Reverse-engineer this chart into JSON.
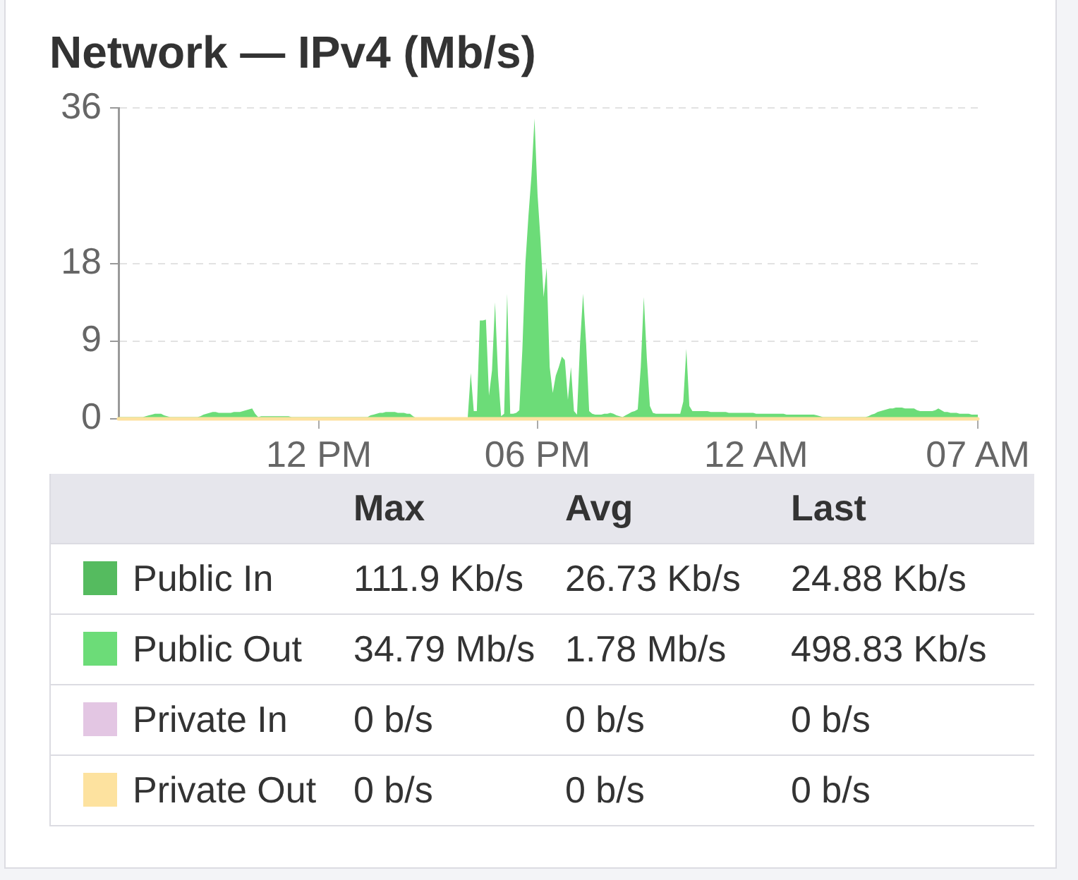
{
  "chart_data": {
    "type": "area",
    "title": "Network — IPv4 (Mb/s)",
    "categories": [
      null,
      null,
      null,
      null,
      null,
      null,
      null,
      null,
      null,
      null,
      null,
      null,
      null,
      null,
      null,
      null,
      null,
      null,
      null,
      null,
      null,
      null,
      null,
      null,
      null,
      null,
      null,
      null,
      null,
      null,
      null,
      null,
      null,
      null,
      null,
      null,
      null,
      null,
      null,
      null,
      null,
      null,
      null,
      null,
      null,
      null,
      null,
      null,
      null,
      null,
      null,
      null,
      null,
      null,
      null,
      null,
      null,
      null,
      null,
      null,
      null,
      null,
      null,
      null,
      null,
      null,
      "12 PM",
      null,
      null,
      null,
      null,
      null,
      null,
      null,
      null,
      null,
      null,
      null,
      null,
      null,
      null,
      null,
      null,
      null,
      null,
      null,
      null,
      null,
      null,
      null,
      null,
      null,
      null,
      null,
      null,
      null,
      null,
      null,
      null,
      null,
      null,
      null,
      null,
      null,
      null,
      null,
      null,
      null,
      null,
      null,
      null,
      null,
      null,
      null,
      null,
      null,
      null,
      null,
      null,
      null,
      null,
      null,
      null,
      null,
      null,
      null,
      null,
      null,
      null,
      null,
      null,
      null,
      null,
      null,
      null,
      null,
      null,
      null,
      "06 PM",
      null,
      null,
      null,
      null,
      null,
      null,
      null,
      null,
      null,
      null,
      null,
      null,
      null,
      null,
      null,
      null,
      null,
      null,
      null,
      null,
      null,
      null,
      null,
      null,
      null,
      null,
      null,
      null,
      null,
      null,
      null,
      null,
      null,
      null,
      null,
      null,
      null,
      null,
      null,
      null,
      null,
      null,
      null,
      null,
      null,
      null,
      null,
      null,
      null,
      null,
      null,
      null,
      null,
      null,
      null,
      null,
      null,
      null,
      null,
      null,
      null,
      null,
      null,
      null,
      null,
      null,
      null,
      null,
      null,
      null,
      null,
      "12 AM",
      null,
      null,
      null,
      null,
      null,
      null,
      null,
      null,
      null,
      null,
      null,
      null,
      null,
      null,
      null,
      null,
      null,
      null,
      null,
      null,
      null,
      null,
      null,
      null,
      null,
      null,
      null,
      null,
      null,
      null,
      null,
      null,
      null,
      null,
      null,
      null,
      null,
      null,
      null,
      null,
      null,
      null,
      null,
      null,
      null,
      null,
      null,
      null,
      null,
      null,
      null,
      null,
      null,
      null,
      null,
      null,
      null,
      null,
      null,
      null,
      null,
      null,
      null,
      null,
      null,
      null,
      null,
      null,
      null,
      null,
      null,
      null,
      "07 AM"
    ],
    "ylim": [
      0,
      36
    ],
    "yticks": [
      0,
      9,
      18,
      36
    ],
    "grid": "y",
    "legend": "bottom",
    "series": [
      {
        "name": "Public In",
        "color": "#55bb5f",
        "values": [
          null,
          null,
          null,
          null,
          null,
          null,
          null,
          null,
          null,
          null,
          null,
          null,
          null,
          null,
          null,
          null,
          null,
          null,
          null,
          null,
          null,
          null,
          null,
          null,
          null,
          null,
          null,
          null,
          null,
          null,
          null,
          null,
          null,
          null,
          null,
          null,
          null,
          null,
          null,
          null,
          null,
          null,
          null,
          null,
          null,
          null,
          null,
          null,
          null,
          null,
          null,
          null,
          null,
          null,
          null,
          null,
          null,
          null,
          null,
          null,
          null,
          null,
          null,
          null,
          null,
          null,
          null,
          null,
          null,
          null,
          null,
          null,
          null,
          null,
          null,
          null,
          null,
          null,
          null,
          null,
          null,
          null,
          null,
          null,
          null,
          null,
          null,
          null,
          null,
          null,
          null,
          null,
          null,
          null,
          null,
          null,
          null,
          null,
          null,
          null,
          null,
          null,
          null,
          null,
          null,
          null,
          null,
          null,
          null,
          null,
          null,
          null,
          null,
          null,
          null,
          null,
          null,
          null,
          null,
          null,
          null,
          null,
          null,
          null,
          null,
          null,
          null,
          null,
          null,
          null,
          null,
          null,
          null,
          null,
          null,
          null,
          null,
          null,
          null,
          null,
          null,
          null,
          null,
          null,
          null,
          null,
          null,
          null,
          null,
          null,
          null,
          null,
          null,
          null,
          null,
          null,
          null,
          null,
          null,
          null,
          null,
          null,
          null,
          null,
          null,
          null,
          null,
          null,
          null,
          null,
          null,
          null,
          null,
          null,
          null,
          null,
          null,
          null,
          null,
          null,
          null,
          null,
          null,
          null,
          null,
          null,
          null,
          null,
          null,
          null,
          null,
          null,
          null,
          null,
          null,
          null,
          null,
          null,
          null,
          null,
          null,
          null,
          null,
          null,
          null,
          null,
          null,
          null,
          null,
          null,
          null,
          null,
          null,
          null,
          null,
          null,
          null,
          null,
          null,
          null,
          null,
          null,
          null,
          null,
          null,
          null,
          null,
          null,
          null,
          null,
          null,
          null,
          null,
          null,
          null,
          null,
          null,
          null,
          null,
          null,
          null,
          null,
          null,
          null,
          null,
          null,
          null,
          null,
          null,
          null,
          null,
          null,
          null,
          null,
          null,
          null,
          null,
          null,
          null,
          null,
          null,
          null,
          null,
          null,
          null,
          null,
          null,
          null,
          null,
          null,
          null,
          null,
          null,
          null,
          null,
          null,
          null,
          null,
          null,
          null,
          null,
          null,
          null,
          null
        ]
      },
      {
        "name": "Public Out",
        "color": "#6cdc78",
        "values": [
          0.2,
          0.2,
          0.2,
          0.2,
          0.2,
          0.2,
          0.2,
          0.2,
          0.2,
          0.3,
          0.4,
          0.5,
          0.6,
          0.6,
          0.6,
          0.4,
          0.3,
          0.2,
          0.2,
          0.2,
          0.2,
          0.2,
          0.2,
          0.2,
          0.2,
          0.2,
          0.2,
          0.3,
          0.5,
          0.6,
          0.7,
          0.8,
          0.8,
          0.7,
          0.7,
          0.7,
          0.7,
          0.7,
          0.8,
          0.8,
          0.8,
          0.9,
          1.0,
          1.1,
          1.2,
          0.6,
          0.2,
          0.3,
          0.3,
          0.3,
          0.3,
          0.3,
          0.3,
          0.3,
          0.3,
          0.3,
          0.3,
          0.2,
          0.2,
          0.2,
          0.2,
          0.2,
          0.2,
          0.2,
          0.2,
          0.2,
          0.2,
          0.2,
          0.2,
          0.2,
          0.2,
          0.2,
          0.2,
          0.2,
          0.2,
          0.2,
          0.2,
          0.2,
          0.2,
          0.2,
          0.2,
          0.2,
          0.2,
          0.4,
          0.5,
          0.6,
          0.7,
          0.7,
          0.8,
          0.8,
          0.8,
          0.8,
          0.7,
          0.7,
          0.7,
          0.6,
          0.6,
          0.3,
          0.1,
          0.1,
          0.1,
          0.1,
          0.1,
          0.1,
          0.1,
          0.1,
          0.1,
          0.1,
          0.1,
          0.1,
          0.1,
          0.1,
          0.1,
          0.1,
          0.1,
          0.1,
          5.3,
          0.9,
          0.9,
          11.4,
          11.4,
          11.5,
          2.7,
          5.6,
          13.5,
          5.0,
          0.3,
          0.6,
          14.5,
          0.6,
          0.6,
          0.7,
          1.0,
          8.0,
          18.0,
          23.5,
          28.2,
          34.8,
          26.0,
          20.6,
          14.1,
          17.5,
          6.0,
          3.0,
          5.0,
          6.0,
          7.2,
          6.8,
          2.2,
          6.0,
          0.9,
          0.5,
          8.7,
          14.5,
          8.7,
          0.9,
          0.6,
          0.5,
          0.5,
          0.5,
          0.6,
          0.6,
          0.7,
          0.6,
          0.4,
          0.3,
          0.2,
          0.4,
          0.6,
          0.8,
          0.9,
          1.1,
          6.0,
          14.1,
          7.0,
          1.5,
          0.7,
          0.6,
          0.6,
          0.6,
          0.6,
          0.6,
          0.6,
          0.6,
          0.6,
          0.6,
          2.0,
          8.1,
          1.5,
          0.9,
          0.9,
          0.9,
          0.9,
          0.9,
          0.9,
          0.8,
          0.8,
          0.8,
          0.8,
          0.8,
          0.8,
          0.7,
          0.7,
          0.7,
          0.7,
          0.7,
          0.7,
          0.7,
          0.7,
          0.7,
          0.6,
          0.6,
          0.6,
          0.6,
          0.6,
          0.6,
          0.6,
          0.6,
          0.6,
          0.6,
          0.5,
          0.5,
          0.5,
          0.5,
          0.5,
          0.5,
          0.5,
          0.5,
          0.5,
          0.5,
          0.4,
          0.3,
          0.2,
          0.2,
          0.2,
          0.2,
          0.2,
          0.2,
          0.2,
          0.2,
          0.2,
          0.2,
          0.2,
          0.2,
          0.2,
          0.2,
          0.2,
          0.3,
          0.5,
          0.6,
          0.8,
          0.9,
          1.0,
          1.1,
          1.2,
          1.2,
          1.3,
          1.3,
          1.3,
          1.2,
          1.2,
          1.2,
          1.2,
          1.0,
          0.9,
          0.9,
          0.9,
          0.9,
          0.9,
          1.0,
          1.2,
          1.0,
          0.8,
          0.8,
          0.7,
          0.7,
          0.7,
          0.6,
          0.6,
          0.6,
          0.6,
          0.5,
          0.5,
          0.5
        ]
      },
      {
        "name": "Private In",
        "color": "#e3c6e3",
        "values": [
          null,
          null,
          null,
          null,
          null,
          null,
          null,
          null,
          null,
          null,
          null,
          null,
          null,
          null,
          null,
          null,
          null,
          null,
          null,
          null,
          null,
          null,
          null,
          null,
          null,
          null,
          null,
          null,
          null,
          null,
          null,
          null,
          null,
          null,
          null,
          null,
          null,
          null,
          null,
          null,
          null,
          null,
          null,
          null,
          null,
          null,
          null,
          null,
          null,
          null,
          null,
          null,
          null,
          null,
          null,
          null,
          null,
          null,
          null,
          null,
          null,
          null,
          null,
          null,
          null,
          null,
          null,
          null,
          null,
          null,
          null,
          null,
          null,
          null,
          null,
          null,
          null,
          null,
          null,
          null,
          null,
          null,
          null,
          null,
          null,
          null,
          null,
          null,
          null,
          null,
          null,
          null,
          null,
          null,
          null,
          null,
          null,
          null,
          null,
          null,
          null,
          null,
          null,
          null,
          null,
          null,
          null,
          null,
          null,
          null,
          null,
          null,
          null,
          null,
          null,
          null,
          null,
          null,
          null,
          null,
          null,
          null,
          null,
          null,
          null,
          null,
          null,
          null,
          null,
          null,
          null,
          null,
          null,
          null,
          null,
          null,
          null,
          null,
          null,
          null,
          null,
          null,
          null,
          null,
          null,
          null,
          null,
          null,
          null,
          null,
          null,
          null,
          null,
          null,
          null,
          null,
          null,
          null,
          null,
          null,
          null,
          null,
          null,
          null,
          null,
          null,
          null,
          null,
          null,
          null,
          null,
          null,
          null,
          null,
          null,
          null,
          null,
          null,
          null,
          null,
          null,
          null,
          null,
          null,
          null,
          null,
          null,
          null,
          null,
          null,
          null,
          null,
          null,
          null,
          null,
          null,
          null,
          null,
          null,
          null,
          null,
          null,
          null,
          null,
          null,
          null,
          null,
          null,
          null,
          null,
          null,
          null,
          null,
          null,
          null,
          null,
          null,
          null,
          null,
          null,
          null,
          null,
          null,
          null,
          null,
          null,
          null,
          null,
          null,
          null,
          null,
          null,
          null,
          null,
          null,
          null,
          null,
          null,
          null,
          null,
          null,
          null,
          null,
          null,
          null,
          null,
          null,
          null,
          null,
          null,
          null,
          null,
          null,
          null,
          null,
          null,
          null,
          null,
          null,
          null,
          null,
          null,
          null,
          null,
          null,
          null,
          null,
          null,
          null,
          null,
          null,
          null,
          null,
          null,
          null,
          null,
          null,
          null,
          null,
          null,
          null,
          null,
          null,
          null
        ]
      },
      {
        "name": "Private Out",
        "color": "#fde29f",
        "type": "line",
        "values": [
          0,
          0,
          0,
          0,
          0,
          0,
          0,
          0,
          0,
          0,
          0,
          0,
          0,
          0,
          0,
          0,
          0,
          0,
          0,
          0,
          0,
          0,
          0,
          0,
          0,
          0,
          0,
          0,
          0,
          0,
          0,
          0,
          0,
          0,
          0,
          0,
          0,
          0,
          0,
          0,
          0,
          0,
          0,
          0,
          0,
          0,
          0,
          0,
          0,
          0,
          0,
          0,
          0,
          0,
          0,
          0,
          0,
          0,
          0,
          0,
          0,
          0,
          0,
          0,
          0,
          0,
          0,
          0,
          0,
          0,
          0,
          0,
          0,
          0,
          0,
          0,
          0,
          0,
          0,
          0,
          0,
          0,
          0,
          0,
          0,
          0,
          0,
          0,
          0,
          0,
          0,
          0,
          0,
          0,
          0,
          0,
          0,
          0,
          0,
          0,
          0,
          0,
          0,
          0,
          0,
          0,
          0,
          0,
          0,
          0,
          0,
          0,
          0,
          0,
          0,
          0,
          0,
          0,
          0,
          0,
          0,
          0,
          0,
          0,
          0,
          0,
          0,
          0,
          0,
          0,
          0,
          0,
          0,
          0,
          0,
          0,
          0,
          0,
          0,
          0,
          0,
          0,
          0,
          0,
          0,
          0,
          0,
          0,
          0,
          0,
          0,
          0,
          0,
          0,
          0,
          0,
          0,
          0,
          0,
          0,
          0,
          0,
          0,
          0,
          0,
          0,
          0,
          0,
          0,
          0,
          0,
          0,
          0,
          0,
          0,
          0,
          0,
          0,
          0,
          0,
          0,
          0,
          0,
          0,
          0,
          0,
          0,
          0,
          0,
          0,
          0,
          0,
          0,
          0,
          0,
          0,
          0,
          0,
          0,
          0,
          0,
          0,
          0,
          0,
          0,
          0,
          0,
          0,
          0,
          0,
          0,
          0,
          0,
          0,
          0,
          0,
          0,
          0,
          0,
          0,
          0,
          0,
          0,
          0,
          0,
          0,
          0,
          0,
          0,
          0,
          0,
          0,
          0,
          0,
          0,
          0,
          0,
          0,
          0,
          0,
          0,
          0,
          0,
          0,
          0,
          0,
          0,
          0,
          0,
          0,
          0,
          0,
          0,
          0,
          0,
          0,
          0,
          0,
          0,
          0,
          0,
          0,
          0,
          0,
          0,
          0,
          0,
          0,
          0,
          0,
          0,
          0,
          0,
          0,
          0,
          0,
          0,
          0,
          0,
          0,
          0,
          0,
          0,
          0
        ]
      }
    ],
    "annotations": [
      "Max",
      "Avg",
      "Last",
      "111.9 Kb/s",
      "26.73 Kb/s",
      "24.88 Kb/s",
      "34.79 Mb/s",
      "1.78 Mb/s",
      "498.83 Kb/s",
      "0 b/s",
      "0 b/s",
      "0 b/s",
      "0 b/s",
      "0 b/s",
      "0 b/s"
    ]
  }
}
